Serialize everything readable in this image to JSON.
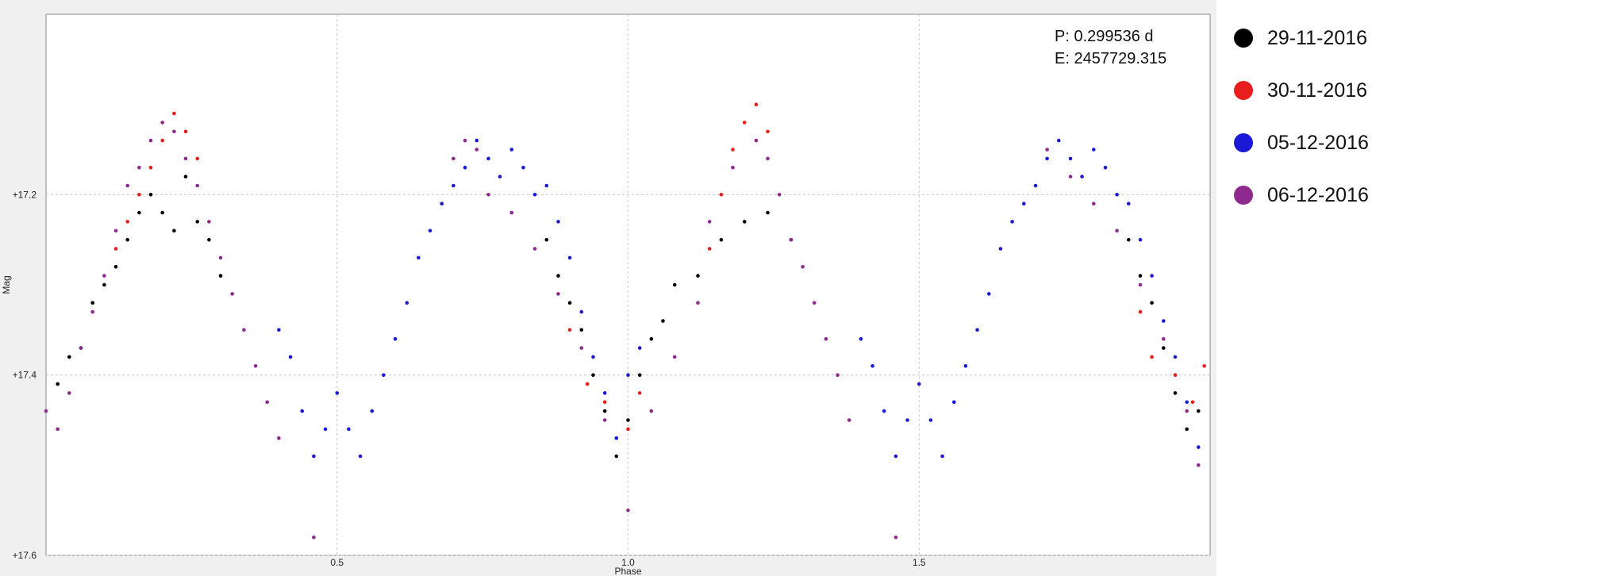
{
  "chart_data": {
    "type": "scatter",
    "title": "",
    "xlabel": "Phase",
    "ylabel": "Mag",
    "xlim": [
      0.0,
      2.0
    ],
    "ylim": [
      17.6,
      17.0
    ],
    "y_inverted": true,
    "grid": true,
    "x_ticks": [
      0.5,
      1.0,
      1.5
    ],
    "x_tick_labels": [
      "0.5",
      "1.0",
      "1.5"
    ],
    "y_ticks": [
      17.2,
      17.4,
      17.6
    ],
    "y_tick_labels": [
      "+17.2",
      "+17.4",
      "+17.6"
    ],
    "annotations": [
      "P: 0.299536 d",
      "E: 2457729.315"
    ],
    "legend_placement": "right",
    "series": [
      {
        "name": "29-11-2016",
        "color": "#000000",
        "points": [
          [
            0.02,
            17.41
          ],
          [
            0.04,
            17.38
          ],
          [
            0.06,
            17.37
          ],
          [
            0.08,
            17.32
          ],
          [
            0.1,
            17.3
          ],
          [
            0.12,
            17.28
          ],
          [
            0.14,
            17.25
          ],
          [
            0.16,
            17.22
          ],
          [
            0.18,
            17.2
          ],
          [
            0.2,
            17.22
          ],
          [
            0.22,
            17.24
          ],
          [
            0.24,
            17.18
          ],
          [
            0.26,
            17.23
          ],
          [
            0.28,
            17.25
          ],
          [
            0.3,
            17.29
          ],
          [
            0.86,
            17.25
          ],
          [
            0.88,
            17.29
          ],
          [
            0.9,
            17.32
          ],
          [
            0.92,
            17.35
          ],
          [
            0.94,
            17.4
          ],
          [
            0.96,
            17.44
          ],
          [
            0.98,
            17.49
          ],
          [
            1.0,
            17.45
          ],
          [
            1.02,
            17.4
          ],
          [
            1.04,
            17.36
          ],
          [
            1.06,
            17.34
          ],
          [
            1.08,
            17.3
          ],
          [
            1.12,
            17.29
          ],
          [
            1.16,
            17.25
          ],
          [
            1.2,
            17.23
          ],
          [
            1.24,
            17.22
          ],
          [
            1.28,
            17.25
          ],
          [
            1.86,
            17.25
          ],
          [
            1.88,
            17.29
          ],
          [
            1.9,
            17.32
          ],
          [
            1.92,
            17.37
          ],
          [
            1.94,
            17.42
          ],
          [
            1.96,
            17.46
          ],
          [
            1.98,
            17.44
          ]
        ]
      },
      {
        "name": "30-11-2016",
        "color": "#e81e1e",
        "points": [
          [
            0.12,
            17.26
          ],
          [
            0.14,
            17.23
          ],
          [
            0.16,
            17.2
          ],
          [
            0.18,
            17.17
          ],
          [
            0.2,
            17.14
          ],
          [
            0.22,
            17.11
          ],
          [
            0.24,
            17.13
          ],
          [
            0.26,
            17.16
          ],
          [
            0.9,
            17.35
          ],
          [
            0.93,
            17.41
          ],
          [
            0.96,
            17.43
          ],
          [
            1.0,
            17.46
          ],
          [
            1.02,
            17.42
          ],
          [
            1.14,
            17.26
          ],
          [
            1.16,
            17.2
          ],
          [
            1.18,
            17.15
          ],
          [
            1.2,
            17.12
          ],
          [
            1.22,
            17.1
          ],
          [
            1.24,
            17.13
          ],
          [
            1.88,
            17.33
          ],
          [
            1.9,
            17.38
          ],
          [
            1.94,
            17.4
          ],
          [
            1.97,
            17.43
          ],
          [
            1.99,
            17.39
          ]
        ]
      },
      {
        "name": "05-12-2016",
        "color": "#1a1ad6",
        "points": [
          [
            0.4,
            17.35
          ],
          [
            0.42,
            17.38
          ],
          [
            0.44,
            17.44
          ],
          [
            0.46,
            17.49
          ],
          [
            0.48,
            17.46
          ],
          [
            0.5,
            17.42
          ],
          [
            0.52,
            17.46
          ],
          [
            0.54,
            17.49
          ],
          [
            0.56,
            17.44
          ],
          [
            0.58,
            17.4
          ],
          [
            0.6,
            17.36
          ],
          [
            0.62,
            17.32
          ],
          [
            0.64,
            17.27
          ],
          [
            0.66,
            17.24
          ],
          [
            0.68,
            17.21
          ],
          [
            0.7,
            17.19
          ],
          [
            0.72,
            17.17
          ],
          [
            0.74,
            17.14
          ],
          [
            0.76,
            17.16
          ],
          [
            0.78,
            17.18
          ],
          [
            0.8,
            17.15
          ],
          [
            0.82,
            17.17
          ],
          [
            0.84,
            17.2
          ],
          [
            0.86,
            17.19
          ],
          [
            0.88,
            17.23
          ],
          [
            0.9,
            17.27
          ],
          [
            0.92,
            17.33
          ],
          [
            0.94,
            17.38
          ],
          [
            0.96,
            17.42
          ],
          [
            0.98,
            17.47
          ],
          [
            1.0,
            17.4
          ],
          [
            1.02,
            17.37
          ],
          [
            1.4,
            17.36
          ],
          [
            1.42,
            17.39
          ],
          [
            1.44,
            17.44
          ],
          [
            1.46,
            17.49
          ],
          [
            1.48,
            17.45
          ],
          [
            1.5,
            17.41
          ],
          [
            1.52,
            17.45
          ],
          [
            1.54,
            17.49
          ],
          [
            1.56,
            17.43
          ],
          [
            1.58,
            17.39
          ],
          [
            1.6,
            17.35
          ],
          [
            1.62,
            17.31
          ],
          [
            1.64,
            17.26
          ],
          [
            1.66,
            17.23
          ],
          [
            1.68,
            17.21
          ],
          [
            1.7,
            17.19
          ],
          [
            1.72,
            17.16
          ],
          [
            1.74,
            17.14
          ],
          [
            1.76,
            17.16
          ],
          [
            1.78,
            17.18
          ],
          [
            1.8,
            17.15
          ],
          [
            1.82,
            17.17
          ],
          [
            1.84,
            17.2
          ],
          [
            1.86,
            17.21
          ],
          [
            1.88,
            17.25
          ],
          [
            1.9,
            17.29
          ],
          [
            1.92,
            17.34
          ],
          [
            1.94,
            17.38
          ],
          [
            1.96,
            17.43
          ],
          [
            1.98,
            17.48
          ]
        ]
      },
      {
        "name": "06-12-2016",
        "color": "#8e2a8e",
        "points": [
          [
            0.0,
            17.44
          ],
          [
            0.02,
            17.46
          ],
          [
            0.04,
            17.42
          ],
          [
            0.06,
            17.37
          ],
          [
            0.08,
            17.33
          ],
          [
            0.1,
            17.29
          ],
          [
            0.12,
            17.24
          ],
          [
            0.14,
            17.19
          ],
          [
            0.16,
            17.17
          ],
          [
            0.18,
            17.14
          ],
          [
            0.2,
            17.12
          ],
          [
            0.22,
            17.13
          ],
          [
            0.24,
            17.16
          ],
          [
            0.26,
            17.19
          ],
          [
            0.28,
            17.23
          ],
          [
            0.3,
            17.27
          ],
          [
            0.32,
            17.31
          ],
          [
            0.34,
            17.35
          ],
          [
            0.36,
            17.39
          ],
          [
            0.38,
            17.43
          ],
          [
            0.4,
            17.47
          ],
          [
            0.46,
            17.58
          ],
          [
            0.7,
            17.16
          ],
          [
            0.72,
            17.14
          ],
          [
            0.74,
            17.15
          ],
          [
            0.76,
            17.2
          ],
          [
            0.8,
            17.22
          ],
          [
            0.84,
            17.26
          ],
          [
            0.88,
            17.31
          ],
          [
            0.92,
            17.37
          ],
          [
            0.96,
            17.45
          ],
          [
            1.0,
            17.55
          ],
          [
            1.04,
            17.44
          ],
          [
            1.08,
            17.38
          ],
          [
            1.12,
            17.32
          ],
          [
            1.14,
            17.23
          ],
          [
            1.18,
            17.17
          ],
          [
            1.22,
            17.14
          ],
          [
            1.24,
            17.16
          ],
          [
            1.26,
            17.2
          ],
          [
            1.28,
            17.25
          ],
          [
            1.3,
            17.28
          ],
          [
            1.32,
            17.32
          ],
          [
            1.34,
            17.36
          ],
          [
            1.36,
            17.4
          ],
          [
            1.38,
            17.45
          ],
          [
            1.46,
            17.58
          ],
          [
            1.72,
            17.15
          ],
          [
            1.76,
            17.18
          ],
          [
            1.8,
            17.21
          ],
          [
            1.84,
            17.24
          ],
          [
            1.88,
            17.3
          ],
          [
            1.92,
            17.36
          ],
          [
            1.96,
            17.44
          ],
          [
            1.98,
            17.5
          ]
        ]
      }
    ]
  }
}
